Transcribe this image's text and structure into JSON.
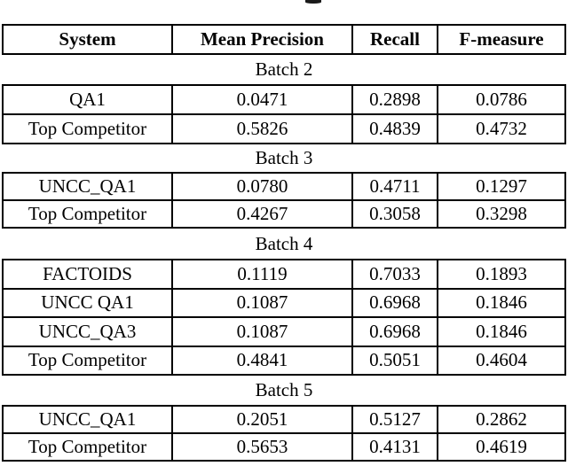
{
  "colors": {
    "background": "#ffffff",
    "text": "#000000",
    "border": "#000000"
  },
  "table": {
    "columns": [
      "System",
      "Mean Precision",
      "Recall",
      "F-measure"
    ],
    "batches": [
      {
        "label": "Batch 2",
        "rows": [
          {
            "cells": [
              "QA1",
              "0.0471",
              "0.2898",
              "0.0786"
            ]
          },
          {
            "cells": [
              "Top Competitor",
              "0.5826",
              "0.4839",
              "0.4732"
            ]
          }
        ]
      },
      {
        "label": "Batch 3",
        "rows": [
          {
            "cells": [
              "UNCC_QA1",
              "0.0780",
              "0.4711",
              "0.1297"
            ]
          },
          {
            "cells": [
              "Top Competitor",
              "0.4267",
              "0.3058",
              "0.3298"
            ]
          }
        ]
      },
      {
        "label": "Batch 4",
        "rows": [
          {
            "cells": [
              "FACTOIDS",
              "0.1119",
              "0.7033",
              "0.1893"
            ]
          },
          {
            "cells": [
              "UNCC QA1",
              "0.1087",
              "0.6968",
              "0.1846"
            ]
          },
          {
            "cells": [
              "UNCC_QA3",
              "0.1087",
              "0.6968",
              "0.1846"
            ]
          },
          {
            "cells": [
              "Top Competitor",
              "0.4841",
              "0.5051",
              "0.4604"
            ]
          }
        ]
      },
      {
        "label": "Batch 5",
        "rows": [
          {
            "cells": [
              "UNCC_QA1",
              "0.2051",
              "0.5127",
              "0.2862"
            ]
          },
          {
            "cells": [
              "Top Competitor",
              "0.5653",
              "0.4131",
              "0.4619"
            ]
          }
        ]
      }
    ]
  }
}
